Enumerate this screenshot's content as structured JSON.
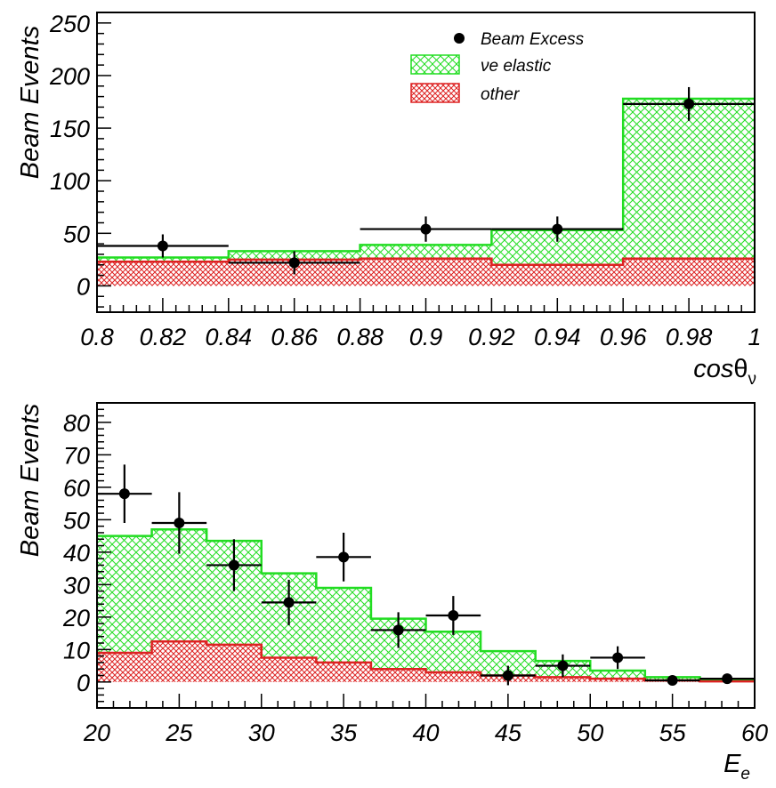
{
  "chart_data": [
    {
      "type": "histogram",
      "xlabel": "cos",
      "xlabel_symbol": "θ",
      "xlabel_sub": "ν",
      "ylabel": "Beam Events",
      "xlim": [
        0.8,
        1.0
      ],
      "ylim": [
        -25,
        260
      ],
      "x_ticks": [
        "0.8",
        "0.82",
        "0.84",
        "0.86",
        "0.88",
        "0.9",
        "0.92",
        "0.94",
        "0.96",
        "0.98",
        "1"
      ],
      "y_ticks": [
        "0",
        "50",
        "100",
        "150",
        "200",
        "250"
      ],
      "legend_position": "top-right",
      "legend": [
        {
          "key": "excess",
          "label": "Beam Excess",
          "style": "marker"
        },
        {
          "key": "nue",
          "label": "νe elastic",
          "style": "green-hatch"
        },
        {
          "key": "other",
          "label": "other",
          "style": "red-hatch"
        }
      ],
      "bin_edges": [
        0.8,
        0.84,
        0.88,
        0.92,
        0.96,
        1.0
      ],
      "stack_total": [
        27,
        33,
        39,
        53,
        178
      ],
      "other": [
        23,
        25,
        26,
        20,
        26
      ],
      "points": [
        {
          "x": 0.82,
          "y": 38,
          "xerr": 0.02,
          "yerr": 11
        },
        {
          "x": 0.86,
          "y": 22,
          "xerr": 0.02,
          "yerr": 11
        },
        {
          "x": 0.9,
          "y": 54,
          "xerr": 0.02,
          "yerr": 12
        },
        {
          "x": 0.94,
          "y": 54,
          "xerr": 0.02,
          "yerr": 12
        },
        {
          "x": 0.98,
          "y": 173,
          "xerr": 0.02,
          "yerr": 16
        }
      ],
      "colors": {
        "nue": "#22dd22",
        "other": "#dd2222",
        "points": "#000000"
      }
    },
    {
      "type": "histogram",
      "xlabel": "E",
      "xlabel_sub": "e",
      "ylabel": "Beam Events",
      "xlim": [
        20,
        60
      ],
      "ylim": [
        -8,
        86
      ],
      "x_ticks": [
        "20",
        "25",
        "30",
        "35",
        "40",
        "45",
        "50",
        "55",
        "60"
      ],
      "y_ticks": [
        "0",
        "10",
        "20",
        "30",
        "40",
        "50",
        "60",
        "70",
        "80"
      ],
      "bin_edges": [
        20,
        23.333,
        26.667,
        30,
        33.333,
        36.667,
        40,
        43.333,
        46.667,
        50,
        53.333,
        56.667,
        60
      ],
      "stack_total": [
        45,
        47,
        43.5,
        33.5,
        29,
        19.5,
        15.5,
        9.5,
        6.5,
        3.5,
        1.5,
        0.6
      ],
      "other": [
        9,
        12.5,
        11.5,
        7.5,
        6,
        4,
        3,
        2,
        1.5,
        1,
        0.5,
        0.2
      ],
      "points": [
        {
          "x": 21.67,
          "y": 58,
          "xerr": 1.667,
          "yerr": 9
        },
        {
          "x": 25.0,
          "y": 49,
          "xerr": 1.667,
          "yerr": 9.5
        },
        {
          "x": 28.33,
          "y": 36,
          "xerr": 1.667,
          "yerr": 8
        },
        {
          "x": 31.67,
          "y": 24.5,
          "xerr": 1.667,
          "yerr": 7
        },
        {
          "x": 35.0,
          "y": 38.5,
          "xerr": 1.667,
          "yerr": 7.5
        },
        {
          "x": 38.33,
          "y": 16,
          "xerr": 1.667,
          "yerr": 5.5
        },
        {
          "x": 41.67,
          "y": 20.5,
          "xerr": 1.667,
          "yerr": 6
        },
        {
          "x": 45.0,
          "y": 2,
          "xerr": 1.667,
          "yerr": 3
        },
        {
          "x": 48.33,
          "y": 5,
          "xerr": 1.667,
          "yerr": 3.5
        },
        {
          "x": 51.67,
          "y": 7.5,
          "xerr": 1.667,
          "yerr": 3.5
        },
        {
          "x": 55.0,
          "y": 0.5,
          "xerr": 1.667,
          "yerr": 1
        },
        {
          "x": 58.33,
          "y": 1,
          "xerr": 1.667,
          "yerr": 0.8
        }
      ],
      "colors": {
        "nue": "#22dd22",
        "other": "#dd2222",
        "points": "#000000"
      }
    }
  ]
}
